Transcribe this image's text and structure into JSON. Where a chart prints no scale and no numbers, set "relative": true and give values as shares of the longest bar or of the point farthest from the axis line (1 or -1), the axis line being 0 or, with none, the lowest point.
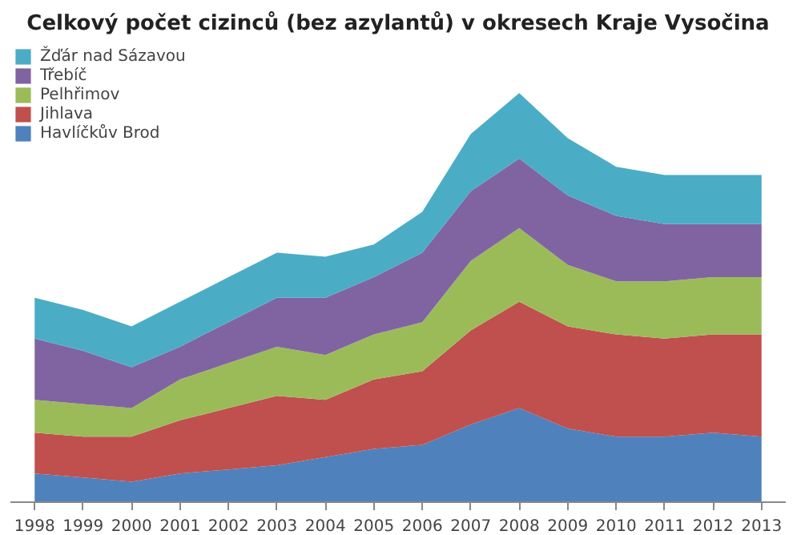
{
  "chart_data": {
    "type": "area",
    "title": "Celkový počet cizinců (bez azylantů) v okresech Kraje Vysočina",
    "relative": true,
    "stacked": true,
    "legend": "top left",
    "categories": [
      "1998",
      "1999",
      "2000",
      "2001",
      "2002",
      "2003",
      "2004",
      "2005",
      "2006",
      "2007",
      "2008",
      "2009",
      "2010",
      "2011",
      "2012",
      "2013"
    ],
    "series": [
      {
        "name": "Havlíčkův Brod",
        "color": "#4f81bd",
        "values": [
          0.07,
          0.06,
          0.05,
          0.07,
          0.08,
          0.09,
          0.11,
          0.13,
          0.14,
          0.19,
          0.23,
          0.18,
          0.16,
          0.16,
          0.17,
          0.16
        ]
      },
      {
        "name": "Jihlava",
        "color": "#c0504d",
        "values": [
          0.1,
          0.1,
          0.11,
          0.13,
          0.15,
          0.17,
          0.14,
          0.17,
          0.18,
          0.23,
          0.26,
          0.25,
          0.25,
          0.24,
          0.24,
          0.25
        ]
      },
      {
        "name": "Pelhřimov",
        "color": "#9bbb59",
        "values": [
          0.08,
          0.08,
          0.07,
          0.1,
          0.11,
          0.12,
          0.11,
          0.11,
          0.12,
          0.17,
          0.18,
          0.15,
          0.13,
          0.14,
          0.14,
          0.14
        ]
      },
      {
        "name": "Třebíč",
        "color": "#8064a2",
        "values": [
          0.15,
          0.13,
          0.1,
          0.08,
          0.1,
          0.12,
          0.14,
          0.14,
          0.17,
          0.17,
          0.17,
          0.17,
          0.16,
          0.14,
          0.13,
          0.13
        ]
      },
      {
        "name": "Žďár nad Sázavou",
        "color": "#4bacc6",
        "values": [
          0.1,
          0.1,
          0.1,
          0.11,
          0.11,
          0.11,
          0.1,
          0.08,
          0.1,
          0.14,
          0.16,
          0.14,
          0.12,
          0.12,
          0.12,
          0.12
        ]
      }
    ]
  }
}
